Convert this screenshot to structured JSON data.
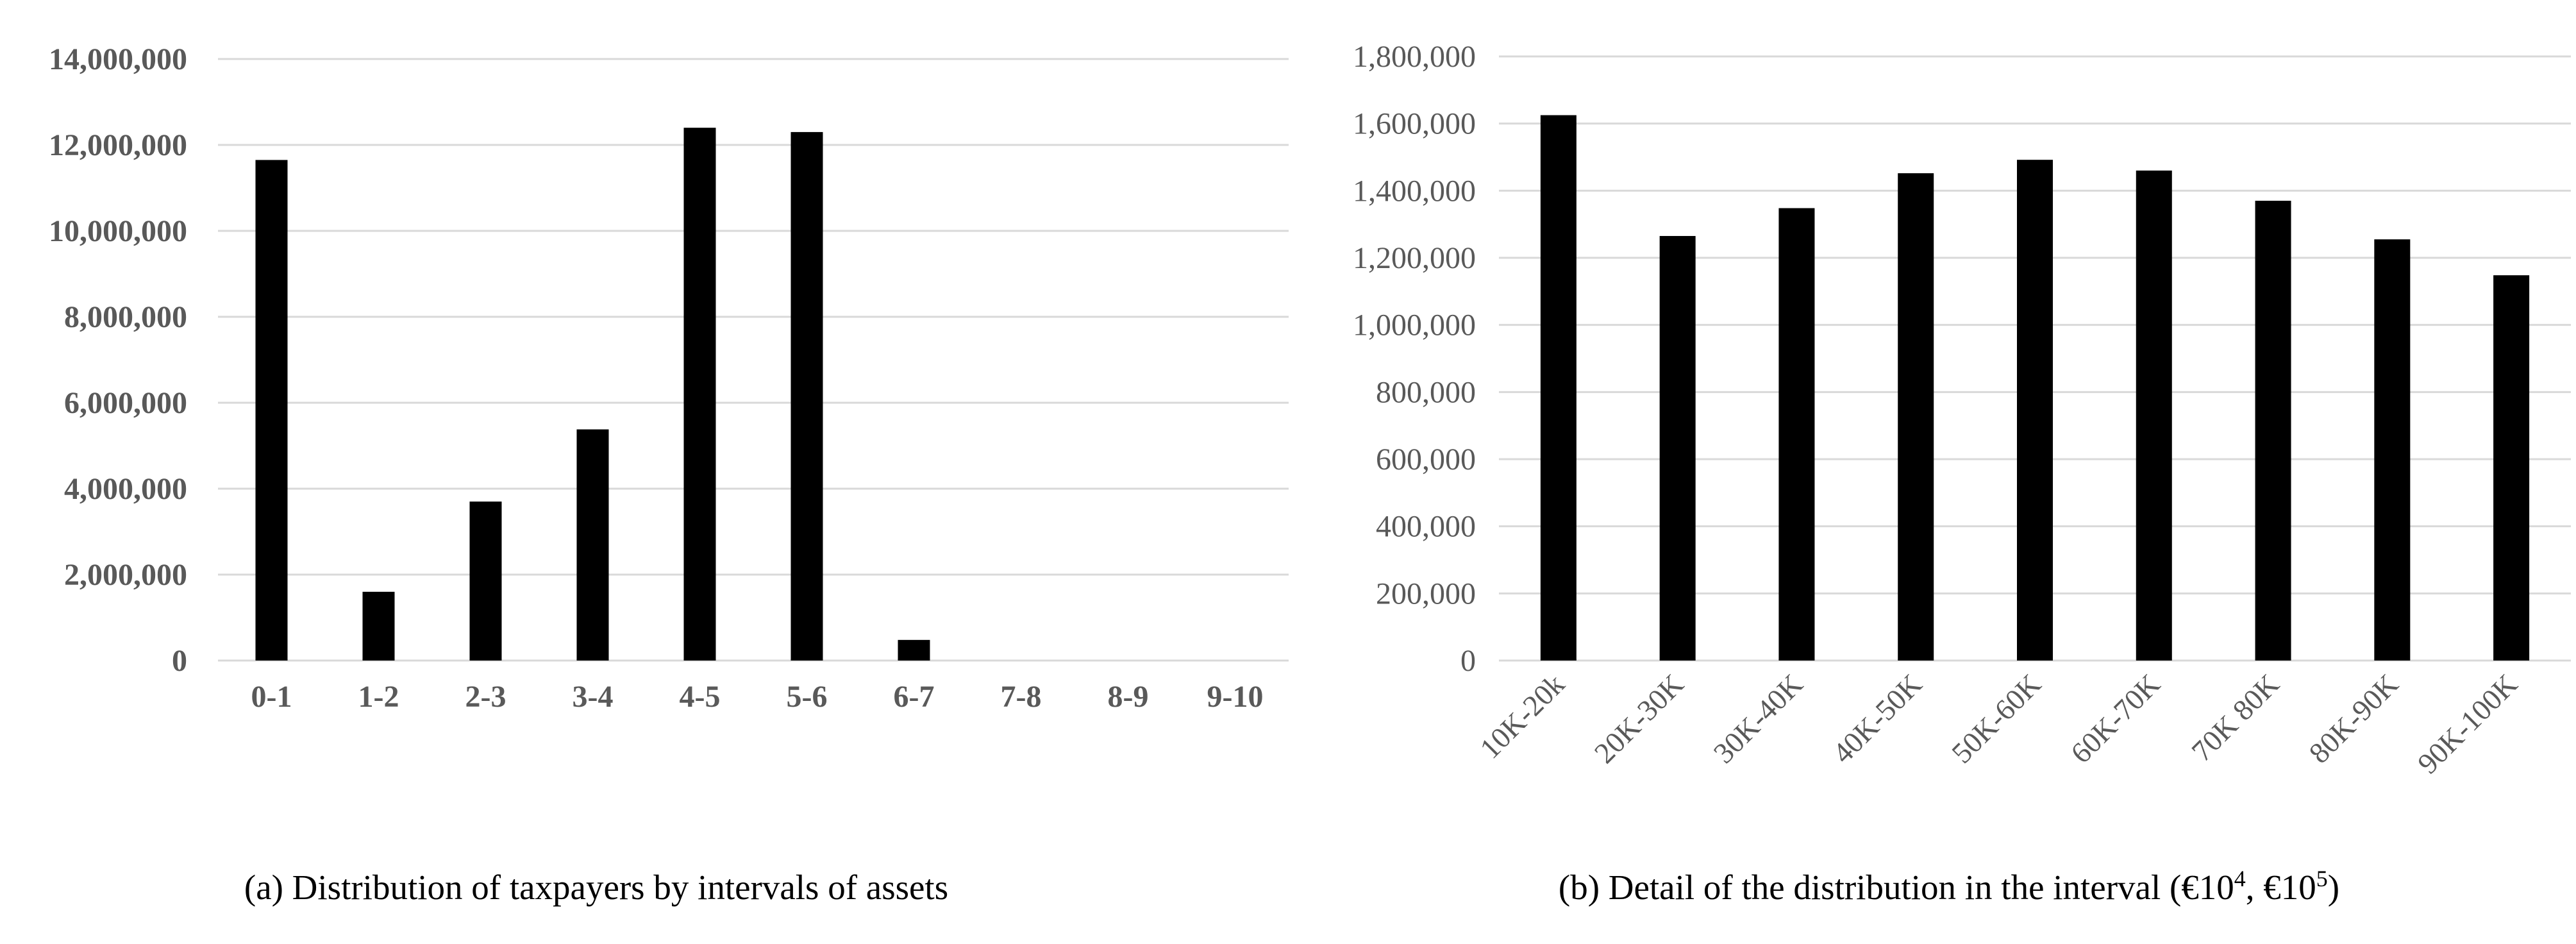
{
  "chart_data": [
    {
      "type": "bar",
      "caption": "(a) Distribution of taxpayers by intervals of assets",
      "categories": [
        "0-1",
        "1-2",
        "2-3",
        "3-4",
        "4-5",
        "5-6",
        "6-7",
        "7-8",
        "8-9",
        "9-10"
      ],
      "values": [
        11650000,
        1600000,
        3700000,
        5380000,
        12400000,
        12300000,
        480000,
        0,
        0,
        0
      ],
      "ylim": [
        0,
        14000000
      ],
      "yticks": [
        "0",
        "2,000,000",
        "4,000,000",
        "6,000,000",
        "8,000,000",
        "10,000,000",
        "12,000,000",
        "14,000,000"
      ],
      "grid": true,
      "bar_color": "#000000"
    },
    {
      "type": "bar",
      "caption_main": "(b) Detail of the distribution in the interval (€10",
      "caption_sup1": "4",
      "caption_mid": ", €10",
      "caption_sup2": "5",
      "caption_end": ")",
      "categories": [
        "10K-20k",
        "20K-30K",
        "30K-40K",
        "40K-50K",
        "50K-60K",
        "60K-70K",
        "70K 80K",
        "80K-90K",
        "90K-100K"
      ],
      "values": [
        1625000,
        1265000,
        1348000,
        1452000,
        1492000,
        1460000,
        1370000,
        1255000,
        1148000
      ],
      "ylim": [
        0,
        1800000
      ],
      "yticks": [
        "0",
        "200,000",
        "400,000",
        "600,000",
        "800,000",
        "1,000,000",
        "1,200,000",
        "1,400,000",
        "1,600,000",
        "1,800,000"
      ],
      "grid": true,
      "bar_color": "#000000"
    }
  ]
}
